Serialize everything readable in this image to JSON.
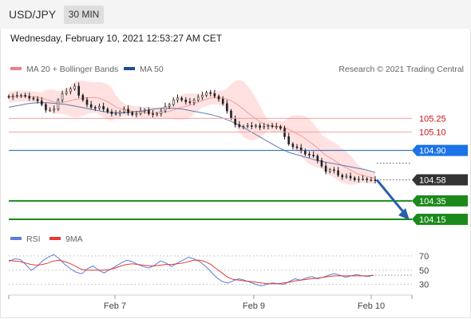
{
  "header": {
    "symbol": "USD/JPY",
    "timeframe": "30 MIN"
  },
  "timestamp": "Wednesday, February 10, 2021 12:53:27 AM CET",
  "colors": {
    "candle": "#222222",
    "band_fill": "#ffc8c8",
    "ma20": "#f08080",
    "ma50": "#5a7bb0",
    "resistance": "#f4a0a0",
    "resistance_text": "#cc1111",
    "pivot": "#1f5faa",
    "support": "#1b8a1b",
    "current": "#333333",
    "forecast_arrow": "#2a5ea8",
    "rsi": "#5a7fd6",
    "rsi_ma": "#e53935"
  },
  "chart_data": [
    {
      "type": "candlestick",
      "title": "USD/JPY",
      "legend": [
        {
          "label": "MA 20 + Bollinger Bands",
          "color": "#f08080"
        },
        {
          "label": "MA 50",
          "color": "#1f4e8c"
        }
      ],
      "credit": "Research © 2021 Trading Central",
      "x_ticks": [
        "Feb 7",
        "Feb 9",
        "Feb 10"
      ],
      "ylim": [
        104.08,
        105.67
      ],
      "close_series": [
        105.48,
        105.49,
        105.5,
        105.5,
        105.49,
        105.47,
        105.46,
        105.44,
        105.4,
        105.34,
        105.34,
        105.35,
        105.45,
        105.52,
        105.54,
        105.57,
        105.6,
        105.5,
        105.45,
        105.4,
        105.37,
        105.36,
        105.38,
        105.35,
        105.32,
        105.3,
        105.3,
        105.32,
        105.35,
        105.31,
        105.29,
        105.3,
        105.33,
        105.34,
        105.3,
        105.29,
        105.3,
        105.33,
        105.38,
        105.4,
        105.45,
        105.47,
        105.45,
        105.43,
        105.42,
        105.45,
        105.48,
        105.5,
        105.53,
        105.52,
        105.49,
        105.46,
        105.41,
        105.33,
        105.25,
        105.18,
        105.16,
        105.16,
        105.17,
        105.16,
        105.17,
        105.15,
        105.16,
        105.17,
        105.16,
        105.16,
        105.14,
        105.05,
        104.97,
        104.94,
        104.93,
        104.9,
        104.86,
        104.85,
        104.84,
        104.79,
        104.73,
        104.67,
        104.69,
        104.68,
        104.63,
        104.61,
        104.62,
        104.6,
        104.58,
        104.59,
        104.59,
        104.58,
        104.58,
        104.57
      ],
      "bollinger": {
        "upper_max": 105.55,
        "lower_min": 104.55
      },
      "ma50_series": [
        105.37,
        105.39,
        105.41,
        105.42,
        105.42,
        105.41,
        105.4,
        105.38,
        105.36,
        105.34,
        105.32,
        105.31,
        105.31,
        105.32,
        105.33,
        105.35,
        105.36,
        105.36,
        105.35,
        105.33,
        105.31,
        105.29,
        105.26,
        105.22,
        105.17,
        105.11,
        105.05,
        104.99,
        104.93,
        104.88,
        104.85,
        104.82,
        104.79,
        104.77,
        104.75,
        104.73,
        104.71,
        104.69,
        104.66
      ],
      "levels": [
        {
          "value": "105.25",
          "type": "resistance"
        },
        {
          "value": "105.10",
          "type": "resistance"
        },
        {
          "value": "104.90",
          "type": "pivot"
        },
        {
          "value": "104.58",
          "type": "last"
        },
        {
          "value": "104.35",
          "type": "support"
        },
        {
          "value": "104.15",
          "type": "support"
        }
      ],
      "forecast": {
        "from": 104.58,
        "to": 104.15,
        "direction": "down"
      }
    },
    {
      "type": "line",
      "title": "RSI",
      "legend": [
        {
          "label": "RSI",
          "color": "#5a7fd6"
        },
        {
          "label": "9MA",
          "color": "#e53935"
        }
      ],
      "ylim": [
        15,
        80
      ],
      "y_ticks": [
        "70",
        "50",
        "30"
      ],
      "rsi_series": [
        62,
        66,
        65,
        58,
        50,
        55,
        63,
        68,
        72,
        66,
        58,
        52,
        47,
        45,
        52,
        56,
        50,
        46,
        51,
        55,
        60,
        64,
        62,
        58,
        55,
        53,
        57,
        63,
        60,
        55,
        60,
        64,
        68,
        66,
        62,
        56,
        48,
        40,
        34,
        32,
        35,
        38,
        36,
        33,
        30,
        28,
        30,
        32,
        31,
        30,
        34,
        38,
        36,
        39,
        41,
        38,
        40,
        43,
        45,
        43,
        40,
        42,
        44,
        42,
        41,
        43
      ],
      "rsi_ma_series": [
        64,
        63,
        62,
        60,
        58,
        57,
        58,
        60,
        63,
        64,
        62,
        59,
        55,
        51,
        50,
        50,
        50,
        50,
        51,
        53,
        56,
        58,
        59,
        58,
        57,
        56,
        56,
        57,
        58,
        58,
        59,
        60,
        62,
        64,
        64,
        62,
        58,
        52,
        46,
        40,
        37,
        36,
        35,
        34,
        33,
        32,
        31,
        31,
        31,
        32,
        33,
        35,
        36,
        37,
        38,
        39,
        40,
        41,
        42,
        42,
        42,
        42,
        42,
        42,
        42,
        43
      ]
    }
  ]
}
